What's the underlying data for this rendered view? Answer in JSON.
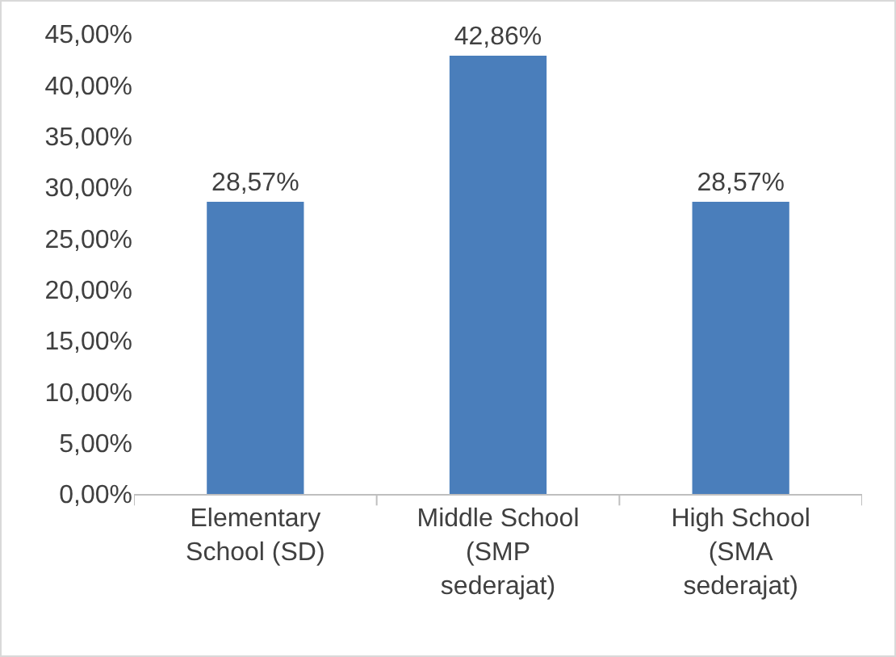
{
  "chart_data": {
    "type": "bar",
    "categories": [
      "Elementary School (SD)",
      "Middle School (SMP sederajat)",
      "High School (SMA sederajat)"
    ],
    "values": [
      28.57,
      42.86,
      28.57
    ],
    "value_labels": [
      "28,57%",
      "42,86%",
      "28,57%"
    ],
    "color": "#4a7ebb",
    "ylim": [
      0,
      45
    ],
    "yticks": [
      {
        "value": 0,
        "label": "0,00%"
      },
      {
        "value": 5,
        "label": "5,00%"
      },
      {
        "value": 10,
        "label": "10,00%"
      },
      {
        "value": 15,
        "label": "15,00%"
      },
      {
        "value": 20,
        "label": "20,00%"
      },
      {
        "value": 25,
        "label": "25,00%"
      },
      {
        "value": 30,
        "label": "30,00%"
      },
      {
        "value": 35,
        "label": "35,00%"
      },
      {
        "value": 40,
        "label": "40,00%"
      },
      {
        "value": 45,
        "label": "45,00%"
      }
    ],
    "grid": false
  }
}
